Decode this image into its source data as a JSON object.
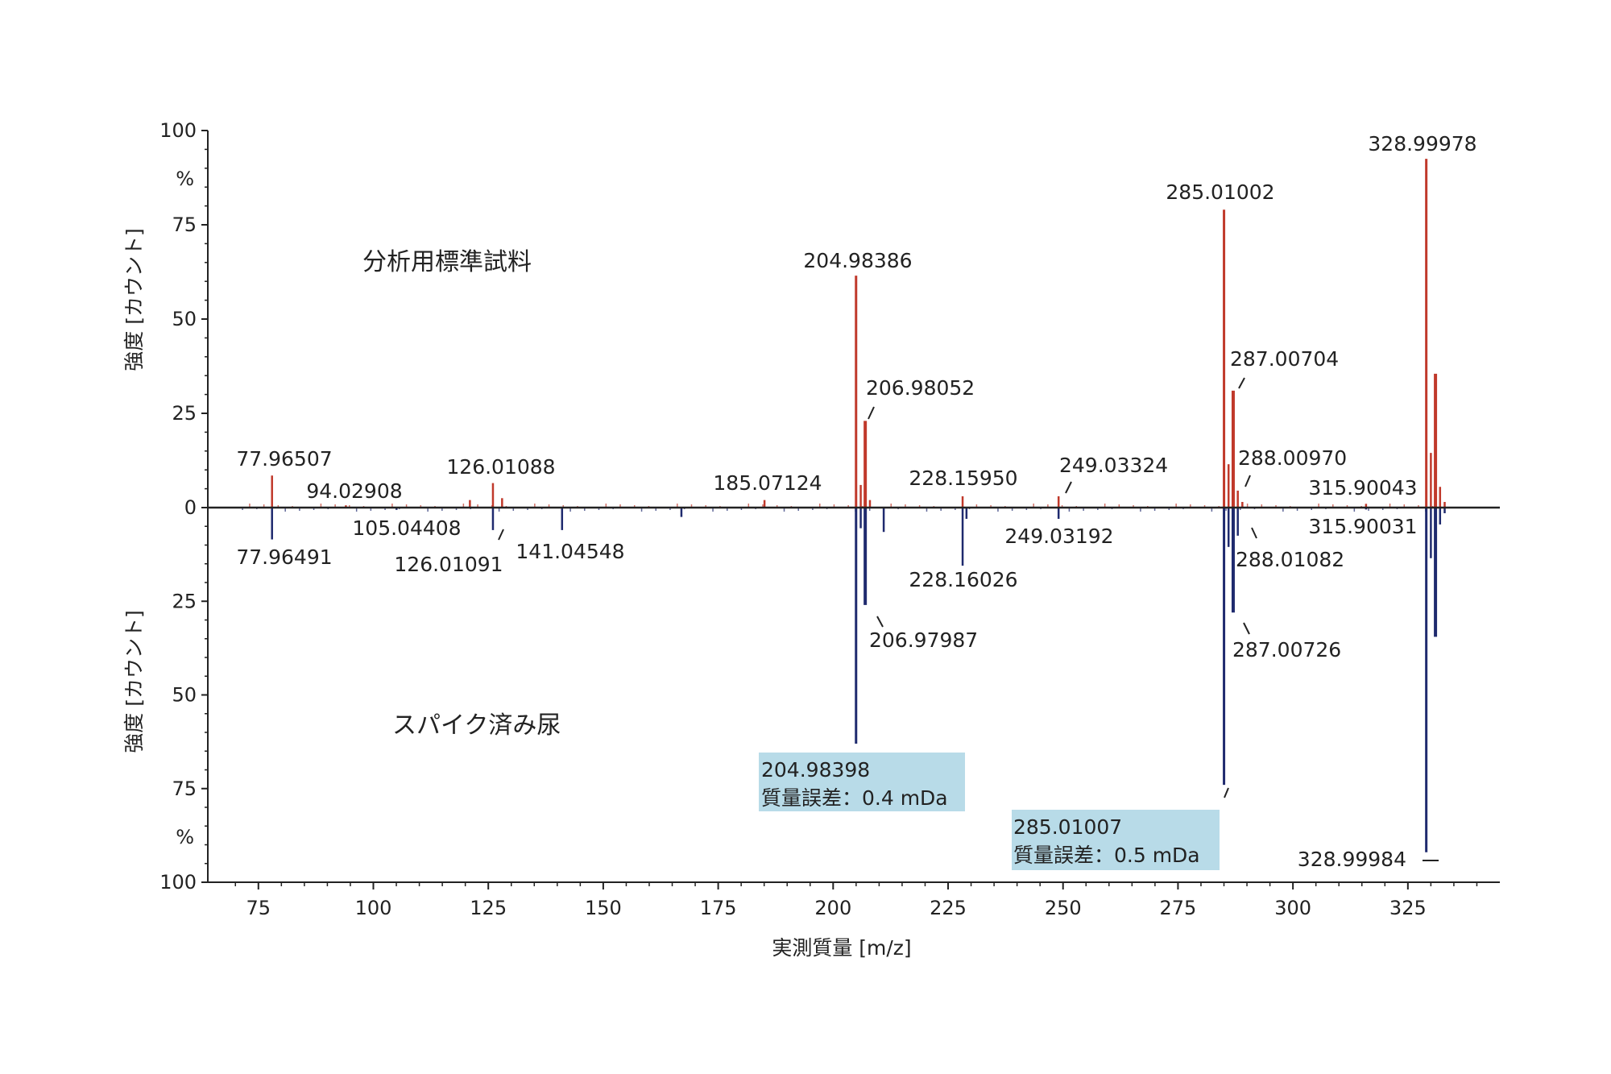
{
  "chart_data": {
    "type": "bar",
    "title": "",
    "xlabel": "実測質量 [m/z]",
    "ylabel_top": "強度 [カウント]",
    "ylabel_bottom": "強度 [カウント]",
    "yunit_top": "%",
    "yunit_bottom": "%",
    "xlim": [
      64,
      345
    ],
    "ylim": [
      0,
      100
    ],
    "xticks": [
      75,
      100,
      125,
      150,
      175,
      200,
      225,
      250,
      275,
      300,
      325
    ],
    "yticks": [
      0,
      25,
      50,
      75,
      100
    ],
    "grid": false,
    "legend": "none",
    "colors": {
      "top": "#c0392b",
      "bottom": "#1f2a6e",
      "axis": "#222222",
      "box": "#b8dbe8"
    },
    "series": [
      {
        "name": "分析用標準試料",
        "direction": "up",
        "values": [
          {
            "x": 77.96507,
            "y": 8.5,
            "label": "77.96507"
          },
          {
            "x": 94.02908,
            "y": 0.6,
            "label": "94.02908"
          },
          {
            "x": 121.0,
            "y": 2.0
          },
          {
            "x": 126.01088,
            "y": 6.5,
            "label": "126.01088"
          },
          {
            "x": 128.0,
            "y": 2.5
          },
          {
            "x": 185.07124,
            "y": 2.0,
            "label": "185.07124"
          },
          {
            "x": 204.98386,
            "y": 61.5,
            "label": "204.98386"
          },
          {
            "x": 206.0,
            "y": 6.0
          },
          {
            "x": 206.98052,
            "y": 23.0,
            "label": "206.98052"
          },
          {
            "x": 208.0,
            "y": 2.0
          },
          {
            "x": 228.1595,
            "y": 3.0,
            "label": "228.15950"
          },
          {
            "x": 249.03324,
            "y": 3.0,
            "label": "249.03324"
          },
          {
            "x": 285.01002,
            "y": 79.0,
            "label": "285.01002"
          },
          {
            "x": 286.0,
            "y": 11.5
          },
          {
            "x": 287.00704,
            "y": 31.0,
            "label": "287.00704"
          },
          {
            "x": 288.0097,
            "y": 4.5,
            "label": "288.00970"
          },
          {
            "x": 289.0,
            "y": 1.5
          },
          {
            "x": 315.90043,
            "y": 1.0,
            "label": "315.90043"
          },
          {
            "x": 328.99978,
            "y": 92.5,
            "label": "328.99978"
          },
          {
            "x": 330.0,
            "y": 14.5
          },
          {
            "x": 331.0,
            "y": 35.5
          },
          {
            "x": 332.0,
            "y": 5.5
          },
          {
            "x": 333.0,
            "y": 1.5
          }
        ]
      },
      {
        "name": "スパイク済み尿",
        "direction": "down",
        "values": [
          {
            "x": 77.96491,
            "y": 8.5,
            "label": "77.96491"
          },
          {
            "x": 105.04408,
            "y": 0.6,
            "label": "105.04408"
          },
          {
            "x": 126.01091,
            "y": 6.0,
            "label": "126.01091"
          },
          {
            "x": 141.04548,
            "y": 6.0,
            "label": "141.04548"
          },
          {
            "x": 167.0,
            "y": 2.5
          },
          {
            "x": 204.98398,
            "y": 63.0,
            "label": "204.98398"
          },
          {
            "x": 206.0,
            "y": 5.5
          },
          {
            "x": 206.97987,
            "y": 26.0,
            "label": "206.97987"
          },
          {
            "x": 211.0,
            "y": 6.5
          },
          {
            "x": 228.16026,
            "y": 15.5,
            "label": "228.16026"
          },
          {
            "x": 229.0,
            "y": 3.0
          },
          {
            "x": 249.03192,
            "y": 3.0,
            "label": "249.03192"
          },
          {
            "x": 285.01007,
            "y": 74.0,
            "label": "285.01007"
          },
          {
            "x": 286.0,
            "y": 10.5
          },
          {
            "x": 287.00726,
            "y": 28.0,
            "label": "287.00726"
          },
          {
            "x": 288.01082,
            "y": 7.5,
            "label": "288.01082"
          },
          {
            "x": 315.90031,
            "y": 0.5,
            "label": "315.90031"
          },
          {
            "x": 328.99984,
            "y": 92.0,
            "label": "328.99984"
          },
          {
            "x": 330.0,
            "y": 13.5
          },
          {
            "x": 331.0,
            "y": 34.5
          },
          {
            "x": 332.0,
            "y": 4.5
          },
          {
            "x": 333.0,
            "y": 1.5
          }
        ]
      }
    ],
    "annotations": {
      "top_sample": "分析用標準試料",
      "bottom_sample": "スパイク済み尿",
      "error_box_1": {
        "mass": "204.98398",
        "error": "質量誤差：0.4 mDa"
      },
      "error_box_2": {
        "mass": "285.01007",
        "error": "質量誤差：0.5 mDa"
      }
    }
  }
}
